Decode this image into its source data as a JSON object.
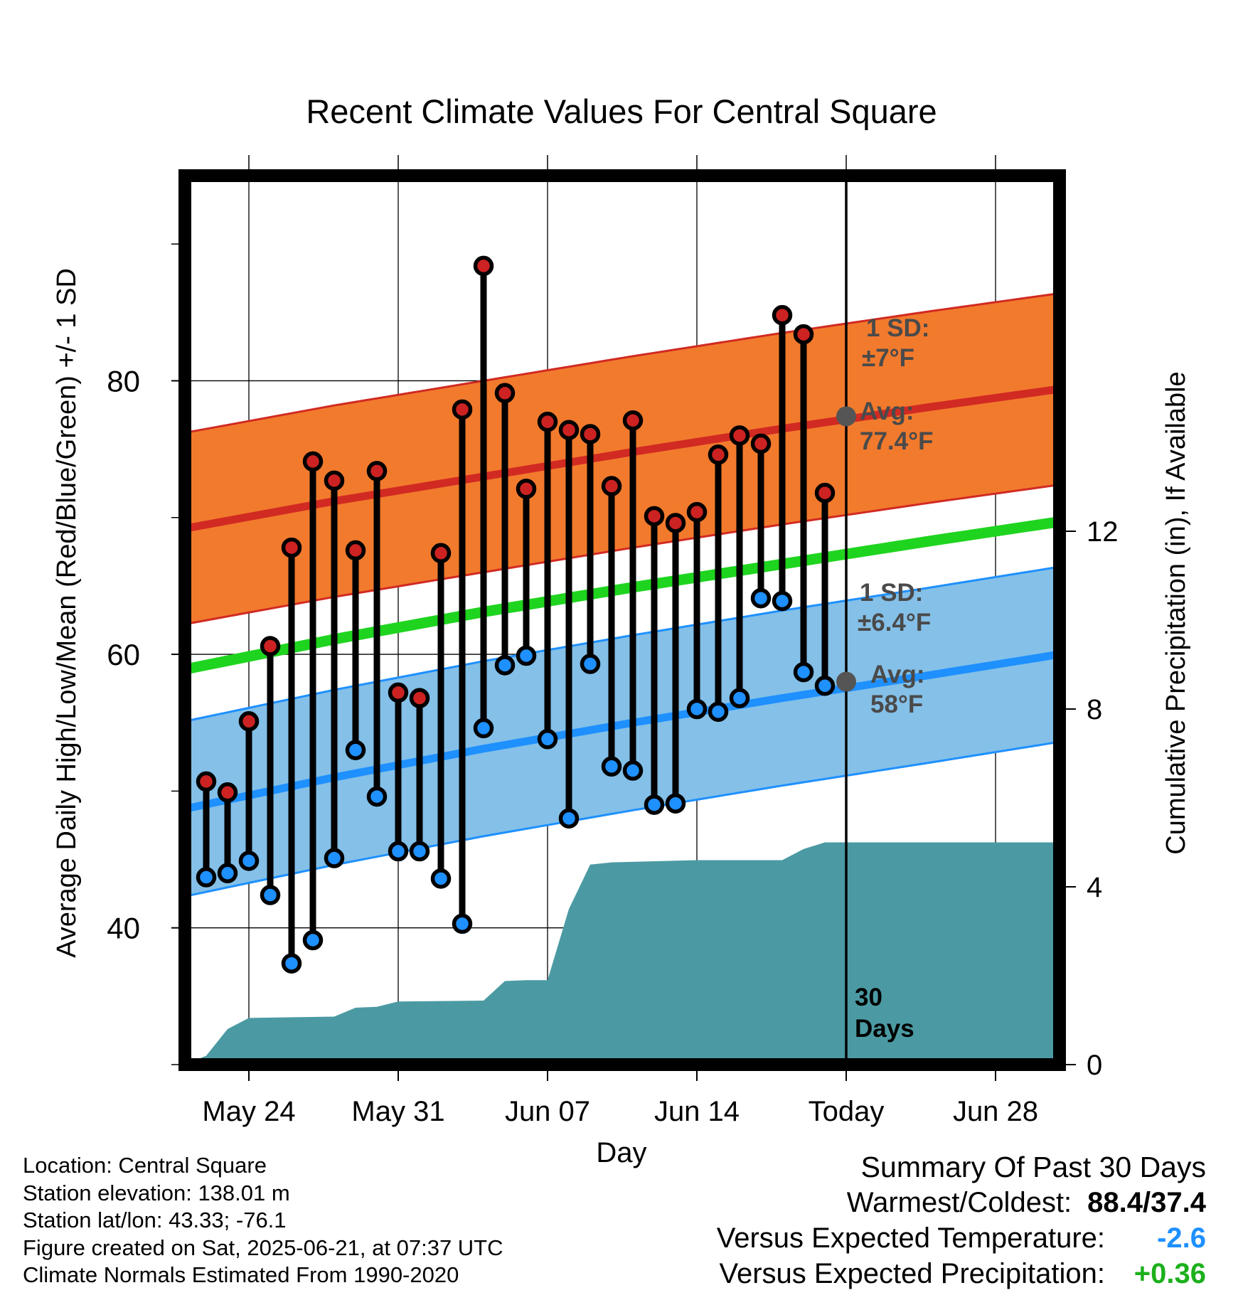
{
  "chart_data": {
    "type": "line",
    "title": "Recent Climate Values For Central Square",
    "xlabel": "Day",
    "ylabel_left": "Average Daily High/Low/Mean (Red/Blue/Green) +/- 1 SD",
    "ylabel_right": "Cumulative Precipitation (in), If Available",
    "x_range": [
      "2025-05-21",
      "2025-07-01"
    ],
    "x_ticks": [
      {
        "date": "2025-05-24",
        "label": "May 24"
      },
      {
        "date": "2025-05-31",
        "label": "May 31"
      },
      {
        "date": "2025-06-07",
        "label": "Jun 07"
      },
      {
        "date": "2025-06-14",
        "label": "Jun 14"
      },
      {
        "date": "2025-06-21",
        "label": "Today"
      },
      {
        "date": "2025-06-28",
        "label": "Jun 28"
      }
    ],
    "y_left": {
      "range": [
        30,
        95
      ],
      "ticks": [
        40,
        60,
        80
      ],
      "minor_ticks": [
        30,
        50,
        70,
        90
      ]
    },
    "y_right": {
      "range": [
        0,
        20
      ],
      "ticks": [
        0,
        4,
        8,
        12
      ]
    },
    "grid": true,
    "today": "2025-06-21",
    "today_label": [
      "30",
      "Days"
    ],
    "normals": {
      "dates": [
        "2025-05-21",
        "2025-05-28",
        "2025-06-04",
        "2025-06-11",
        "2025-06-18",
        "2025-06-25",
        "2025-07-01"
      ],
      "high_mean": [
        69.2,
        71.2,
        73.0,
        74.8,
        76.5,
        78.1,
        79.4
      ],
      "low_mean": [
        48.7,
        51.0,
        53.1,
        55.0,
        56.8,
        58.5,
        60.0
      ],
      "mean": [
        58.9,
        61.1,
        63.1,
        64.9,
        66.6,
        68.3,
        69.7
      ],
      "high_sd": 7,
      "low_sd": 6.4
    },
    "annotations": {
      "high_sd_text": [
        "1 SD:",
        "±7°F"
      ],
      "high_avg_text": [
        "Avg:",
        "77.4°F"
      ],
      "low_sd_text": [
        "1 SD:",
        "±6.4°F"
      ],
      "low_avg_text": [
        "Avg:",
        "58°F"
      ],
      "high_avg_value": 77.4,
      "low_avg_value": 58.0
    },
    "series": [
      {
        "name": "High",
        "color": "#cc2222",
        "x": [
          "2025-05-22",
          "2025-05-23",
          "2025-05-24",
          "2025-05-25",
          "2025-05-26",
          "2025-05-27",
          "2025-05-28",
          "2025-05-29",
          "2025-05-30",
          "2025-05-31",
          "2025-06-01",
          "2025-06-02",
          "2025-06-03",
          "2025-06-04",
          "2025-06-05",
          "2025-06-06",
          "2025-06-07",
          "2025-06-08",
          "2025-06-09",
          "2025-06-10",
          "2025-06-11",
          "2025-06-12",
          "2025-06-13",
          "2025-06-14",
          "2025-06-15",
          "2025-06-16",
          "2025-06-17",
          "2025-06-18",
          "2025-06-19",
          "2025-06-20"
        ],
        "values": [
          50.7,
          49.9,
          55.1,
          60.6,
          67.8,
          74.1,
          72.7,
          67.6,
          73.4,
          57.2,
          56.8,
          67.4,
          77.9,
          88.4,
          79.1,
          72.1,
          77.0,
          76.4,
          76.1,
          72.3,
          77.1,
          70.1,
          69.6,
          70.4,
          74.6,
          76.0,
          75.4,
          84.8,
          83.4,
          71.8
        ]
      },
      {
        "name": "Low",
        "color": "#1e90ff",
        "x": [
          "2025-05-22",
          "2025-05-23",
          "2025-05-24",
          "2025-05-25",
          "2025-05-26",
          "2025-05-27",
          "2025-05-28",
          "2025-05-29",
          "2025-05-30",
          "2025-05-31",
          "2025-06-01",
          "2025-06-02",
          "2025-06-03",
          "2025-06-04",
          "2025-06-05",
          "2025-06-06",
          "2025-06-07",
          "2025-06-08",
          "2025-06-09",
          "2025-06-10",
          "2025-06-11",
          "2025-06-12",
          "2025-06-13",
          "2025-06-14",
          "2025-06-15",
          "2025-06-16",
          "2025-06-17",
          "2025-06-18",
          "2025-06-19",
          "2025-06-20"
        ],
        "values": [
          43.7,
          44.0,
          44.9,
          42.4,
          37.4,
          39.1,
          45.1,
          53.0,
          49.6,
          45.6,
          45.6,
          43.6,
          40.3,
          54.6,
          59.2,
          59.9,
          53.8,
          48.0,
          59.3,
          51.8,
          51.5,
          49.0,
          49.1,
          56.0,
          55.8,
          56.8,
          64.1,
          63.9,
          58.7,
          57.7
        ]
      },
      {
        "name": "Cumulative Precipitation",
        "color": "#4b9aa3",
        "x": [
          "2025-05-21",
          "2025-05-22",
          "2025-05-23",
          "2025-05-24",
          "2025-05-28",
          "2025-05-29",
          "2025-05-30",
          "2025-05-31",
          "2025-06-04",
          "2025-06-05",
          "2025-06-06",
          "2025-06-07",
          "2025-06-08",
          "2025-06-09",
          "2025-06-10",
          "2025-06-14",
          "2025-06-18",
          "2025-06-19",
          "2025-06-20",
          "2025-07-01"
        ],
        "values": [
          0.0,
          0.2,
          0.8,
          1.05,
          1.08,
          1.28,
          1.3,
          1.42,
          1.44,
          1.88,
          1.9,
          1.9,
          3.5,
          4.5,
          4.55,
          4.6,
          4.6,
          4.85,
          5.0,
          5.0
        ]
      }
    ]
  },
  "info": {
    "location": "Location: Central Square",
    "elevation": "Station elevation: 138.01 m",
    "latlon": "Station lat/lon: 43.33; -76.1",
    "created": "Figure created on Sat, 2025-06-21, at 07:37 UTC",
    "normals": "Climate Normals Estimated From 1990-2020"
  },
  "summary": {
    "heading": "Summary Of Past 30 Days",
    "warmest_coldest_label": "Warmest/Coldest:",
    "warmest_coldest_value": "88.4/37.4",
    "temp_label": "Versus Expected Temperature:",
    "temp_value": "-2.6",
    "precip_label": "Versus Expected Precipitation:",
    "precip_value": "+0.36",
    "colors": {
      "warmest": "#000000",
      "temp": "#1e90ff",
      "precip": "#1cb01c"
    }
  }
}
